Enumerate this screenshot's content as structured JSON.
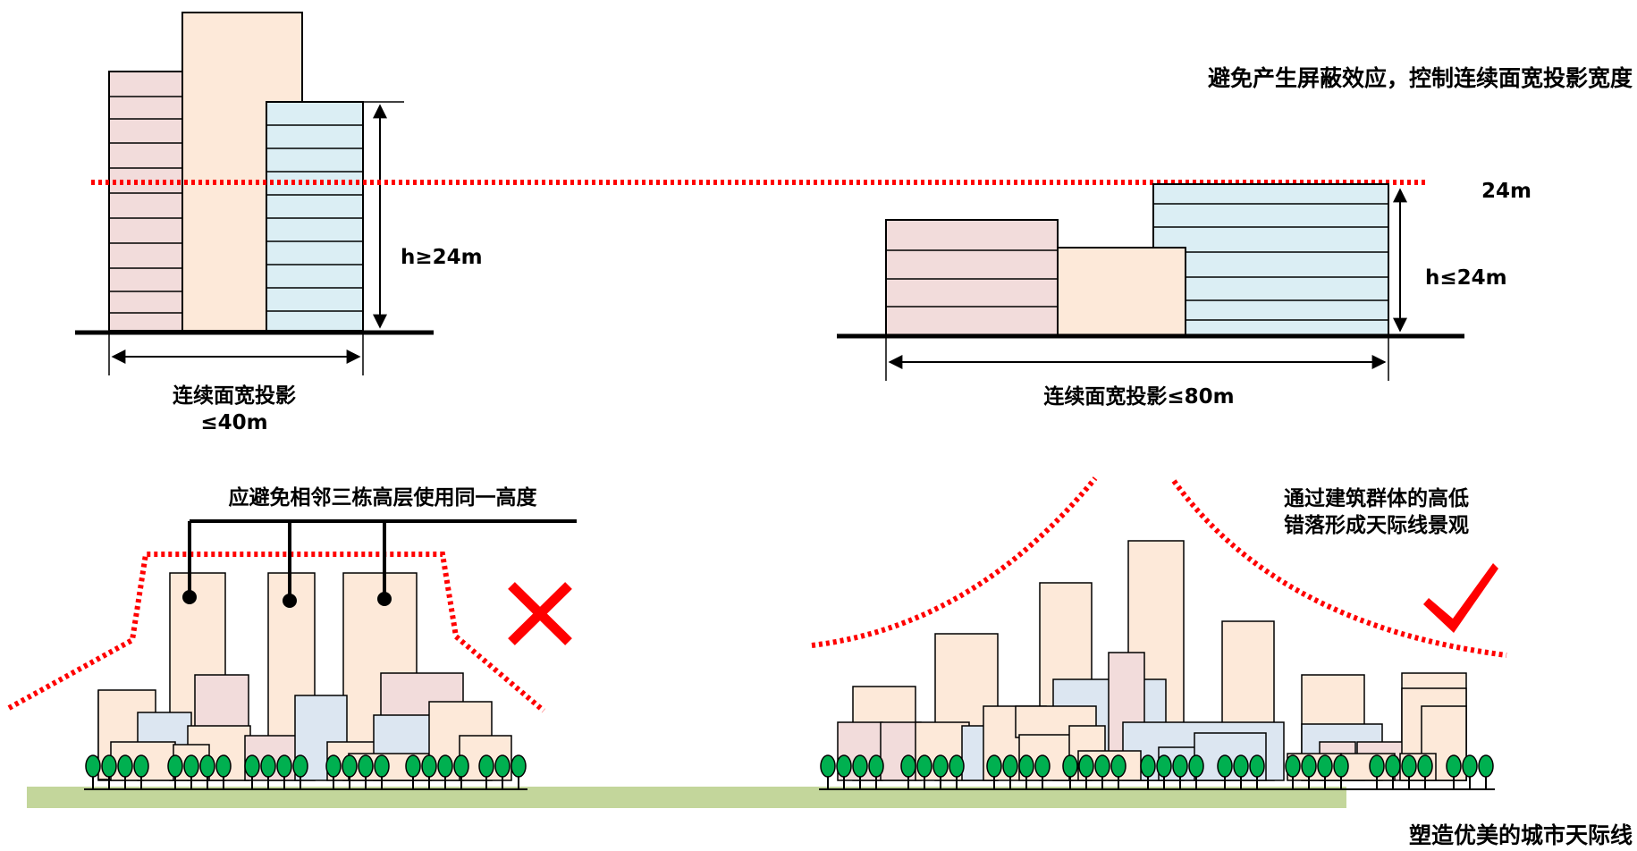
{
  "top_left": {
    "height_label": "h≥24m",
    "width_label_line1": "连续面宽投影",
    "width_label_line2": "≤40m"
  },
  "top_right": {
    "title": "避免产生屏蔽效应，控制连续面宽投影宽度",
    "limit_label": "24m",
    "height_label": "h≤24m",
    "width_label": "连续面宽投影≤80m"
  },
  "bottom_left": {
    "callout": "应避免相邻三栋高层使用同一高度",
    "verdict_icon": "cross-icon"
  },
  "bottom_right": {
    "callout_line1": "通过建筑群体的高低",
    "callout_line2": "错落形成天际线景观",
    "verdict_icon": "check-icon",
    "caption": "塑造优美的城市天际线"
  },
  "colors": {
    "pink": "#f2dcdb",
    "peach": "#fde9d9",
    "cyan": "#dbeef4",
    "blue": "#dce6f1",
    "red_dotted": "#ff0000",
    "check_red": "#ff0000",
    "cross_red": "#ff0000",
    "tree_green": "#00b050",
    "ground": "#c3d69b"
  }
}
